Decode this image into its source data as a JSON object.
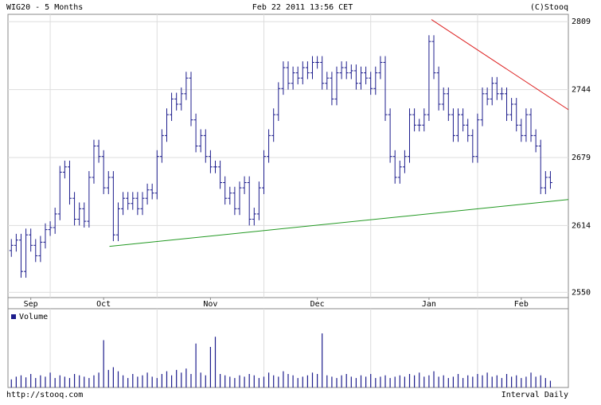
{
  "chart_data": {
    "type": "ohlc",
    "title": "WIG20 - 5 Months",
    "timestamp": "Feb 22 2011 13:56 CET",
    "copyright": "(C)Stooq",
    "footer_left": "http://stooq.com",
    "footer_right": "Interval Daily",
    "volume_label": "Volume",
    "color": "#1c1c8c",
    "volume_color": "#1c1c8c",
    "xlim": [
      -0.7,
      114.7
    ],
    "ylim": [
      2545,
      2816
    ],
    "yticks": [
      2550,
      2614,
      2679,
      2744,
      2809
    ],
    "xticks": [
      {
        "value": 4,
        "label": "Sep"
      },
      {
        "value": 19,
        "label": "Oct"
      },
      {
        "value": 41,
        "label": "Nov"
      },
      {
        "value": 63,
        "label": "Dec"
      },
      {
        "value": 86,
        "label": "Jan"
      },
      {
        "value": 105,
        "label": "Feb"
      }
    ],
    "xgrid": [
      8,
      30,
      52,
      74,
      96
    ],
    "grid": true,
    "open": [
      2590,
      2595,
      2600,
      2570,
      2605,
      2595,
      2585,
      2598,
      2610,
      2612,
      2625,
      2665,
      2670,
      2640,
      2620,
      2630,
      2618,
      2660,
      2690,
      2680,
      2650,
      2660,
      2605,
      2630,
      2640,
      2635,
      2640,
      2630,
      2640,
      2648,
      2645,
      2680,
      2700,
      2720,
      2735,
      2730,
      2740,
      2755,
      2715,
      2690,
      2700,
      2680,
      2670,
      2670,
      2655,
      2640,
      2645,
      2630,
      2650,
      2655,
      2620,
      2625,
      2650,
      2680,
      2700,
      2720,
      2745,
      2765,
      2750,
      2760,
      2755,
      2765,
      2760,
      2770,
      2770,
      2750,
      2755,
      2735,
      2760,
      2765,
      2760,
      2762,
      2750,
      2760,
      2755,
      2745,
      2760,
      2770,
      2720,
      2680,
      2660,
      2670,
      2680,
      2720,
      2710,
      2710,
      2720,
      2790,
      2760,
      2730,
      2740,
      2720,
      2700,
      2720,
      2710,
      2700,
      2680,
      2715,
      2740,
      2735,
      2750,
      2740,
      2740,
      2720,
      2730,
      2710,
      2700,
      2720,
      2700,
      2690,
      2650,
      2660
    ],
    "high": [
      2601,
      2606,
      2606,
      2611,
      2611,
      2601,
      2604,
      2616,
      2618,
      2631,
      2671,
      2676,
      2676,
      2646,
      2636,
      2636,
      2666,
      2696,
      2696,
      2686,
      2666,
      2666,
      2636,
      2646,
      2646,
      2646,
      2646,
      2646,
      2654,
      2654,
      2686,
      2706,
      2726,
      2741,
      2741,
      2746,
      2761,
      2761,
      2721,
      2706,
      2706,
      2686,
      2676,
      2676,
      2661,
      2651,
      2651,
      2656,
      2661,
      2661,
      2631,
      2656,
      2686,
      2706,
      2726,
      2751,
      2771,
      2771,
      2766,
      2766,
      2771,
      2771,
      2776,
      2776,
      2776,
      2761,
      2761,
      2766,
      2771,
      2771,
      2768,
      2768,
      2766,
      2766,
      2761,
      2766,
      2776,
      2776,
      2726,
      2686,
      2676,
      2686,
      2726,
      2726,
      2716,
      2726,
      2796,
      2796,
      2766,
      2746,
      2746,
      2726,
      2726,
      2726,
      2716,
      2706,
      2721,
      2746,
      2746,
      2756,
      2756,
      2746,
      2746,
      2736,
      2736,
      2716,
      2726,
      2726,
      2706,
      2696,
      2666,
      2666
    ],
    "low": [
      2584,
      2589,
      2564,
      2564,
      2589,
      2579,
      2579,
      2592,
      2604,
      2606,
      2619,
      2659,
      2634,
      2614,
      2614,
      2612,
      2612,
      2654,
      2674,
      2644,
      2644,
      2599,
      2599,
      2624,
      2629,
      2629,
      2624,
      2624,
      2634,
      2639,
      2639,
      2674,
      2694,
      2714,
      2724,
      2724,
      2734,
      2709,
      2684,
      2684,
      2674,
      2664,
      2664,
      2649,
      2634,
      2634,
      2624,
      2624,
      2644,
      2614,
      2614,
      2619,
      2644,
      2674,
      2694,
      2714,
      2739,
      2744,
      2744,
      2749,
      2749,
      2754,
      2754,
      2764,
      2744,
      2744,
      2729,
      2729,
      2754,
      2754,
      2754,
      2744,
      2744,
      2749,
      2739,
      2739,
      2754,
      2714,
      2674,
      2654,
      2654,
      2664,
      2674,
      2704,
      2704,
      2704,
      2714,
      2754,
      2724,
      2724,
      2714,
      2694,
      2694,
      2704,
      2694,
      2674,
      2674,
      2709,
      2729,
      2729,
      2734,
      2734,
      2714,
      2714,
      2704,
      2694,
      2694,
      2694,
      2684,
      2644,
      2644,
      2649
    ],
    "close": [
      2595,
      2600,
      2570,
      2605,
      2595,
      2585,
      2598,
      2610,
      2612,
      2625,
      2665,
      2670,
      2640,
      2620,
      2630,
      2618,
      2660,
      2690,
      2680,
      2650,
      2660,
      2605,
      2630,
      2640,
      2635,
      2640,
      2630,
      2640,
      2648,
      2645,
      2680,
      2700,
      2720,
      2735,
      2730,
      2740,
      2755,
      2715,
      2690,
      2700,
      2680,
      2670,
      2670,
      2655,
      2640,
      2645,
      2630,
      2650,
      2655,
      2620,
      2625,
      2650,
      2680,
      2700,
      2720,
      2745,
      2765,
      2750,
      2760,
      2755,
      2765,
      2760,
      2770,
      2770,
      2750,
      2755,
      2735,
      2760,
      2765,
      2760,
      2762,
      2750,
      2760,
      2755,
      2745,
      2760,
      2770,
      2720,
      2680,
      2660,
      2670,
      2680,
      2720,
      2710,
      2710,
      2720,
      2790,
      2760,
      2730,
      2740,
      2720,
      2700,
      2720,
      2710,
      2700,
      2680,
      2715,
      2740,
      2735,
      2750,
      2740,
      2740,
      2720,
      2730,
      2710,
      2700,
      2720,
      2700,
      2690,
      2650,
      2660,
      2655
    ],
    "vlim": [
      0,
      100
    ],
    "volume": [
      12,
      16,
      18,
      15,
      20,
      14,
      18,
      16,
      22,
      14,
      18,
      16,
      14,
      20,
      18,
      16,
      14,
      18,
      22,
      70,
      26,
      30,
      24,
      18,
      14,
      20,
      16,
      18,
      22,
      16,
      14,
      20,
      24,
      18,
      26,
      22,
      28,
      20,
      65,
      22,
      18,
      60,
      75,
      20,
      18,
      16,
      14,
      18,
      16,
      20,
      18,
      14,
      16,
      22,
      18,
      16,
      24,
      20,
      18,
      14,
      16,
      18,
      22,
      20,
      80,
      18,
      16,
      14,
      18,
      20,
      16,
      14,
      18,
      16,
      20,
      14,
      16,
      18,
      14,
      16,
      18,
      16,
      20,
      18,
      22,
      16,
      18,
      24,
      16,
      18,
      14,
      16,
      20,
      14,
      18,
      16,
      20,
      18,
      22,
      16,
      18,
      14,
      20,
      16,
      18,
      14,
      16,
      22,
      16,
      18,
      14,
      10
    ],
    "trendlines": [
      {
        "color": "#dd2222",
        "points": [
          [
            86.5,
            2811
          ],
          [
            121.5,
            2704
          ]
        ]
      },
      {
        "color": "#229922",
        "points": [
          [
            20.2,
            2594
          ],
          [
            121.5,
            2642
          ]
        ]
      }
    ]
  }
}
